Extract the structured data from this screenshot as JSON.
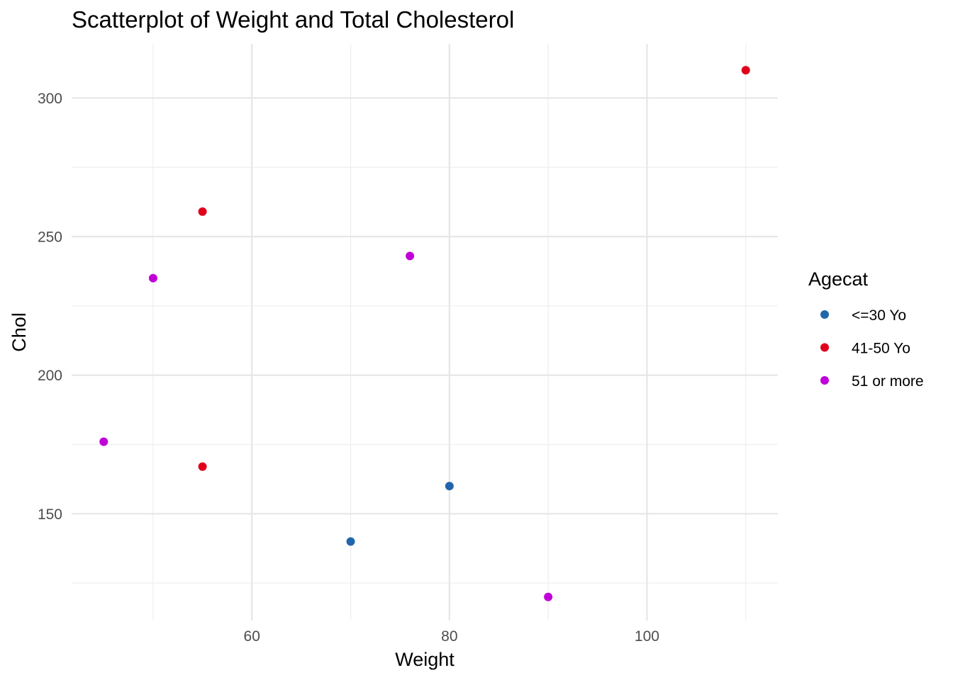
{
  "chart_data": {
    "type": "scatter",
    "title": "Scatterplot of Weight and Total Cholesterol",
    "xlabel": "Weight",
    "ylabel": "Chol",
    "xlim": [
      41.75,
      113.25
    ],
    "ylim": [
      111.5,
      319.5
    ],
    "x_ticks": [
      60,
      80,
      100
    ],
    "x_minor_ticks": [
      50,
      70,
      90,
      110
    ],
    "y_ticks": [
      150,
      200,
      250,
      300
    ],
    "y_minor_ticks": [
      125,
      175,
      225,
      275
    ],
    "grid": true,
    "legend": {
      "title": "Agecat",
      "placement": "right"
    },
    "series": [
      {
        "name": "<=30 Yo",
        "color": "#2166ac",
        "points": [
          {
            "x": 70,
            "y": 140
          },
          {
            "x": 80,
            "y": 160
          }
        ]
      },
      {
        "name": "41-50 Yo",
        "color": "#e0001b",
        "points": [
          {
            "x": 55,
            "y": 259
          },
          {
            "x": 55,
            "y": 167
          },
          {
            "x": 110,
            "y": 310
          }
        ]
      },
      {
        "name": "51 or more",
        "color": "#c000d8",
        "points": [
          {
            "x": 45,
            "y": 176
          },
          {
            "x": 50,
            "y": 235
          },
          {
            "x": 76,
            "y": 243
          },
          {
            "x": 90,
            "y": 120
          }
        ]
      }
    ]
  }
}
